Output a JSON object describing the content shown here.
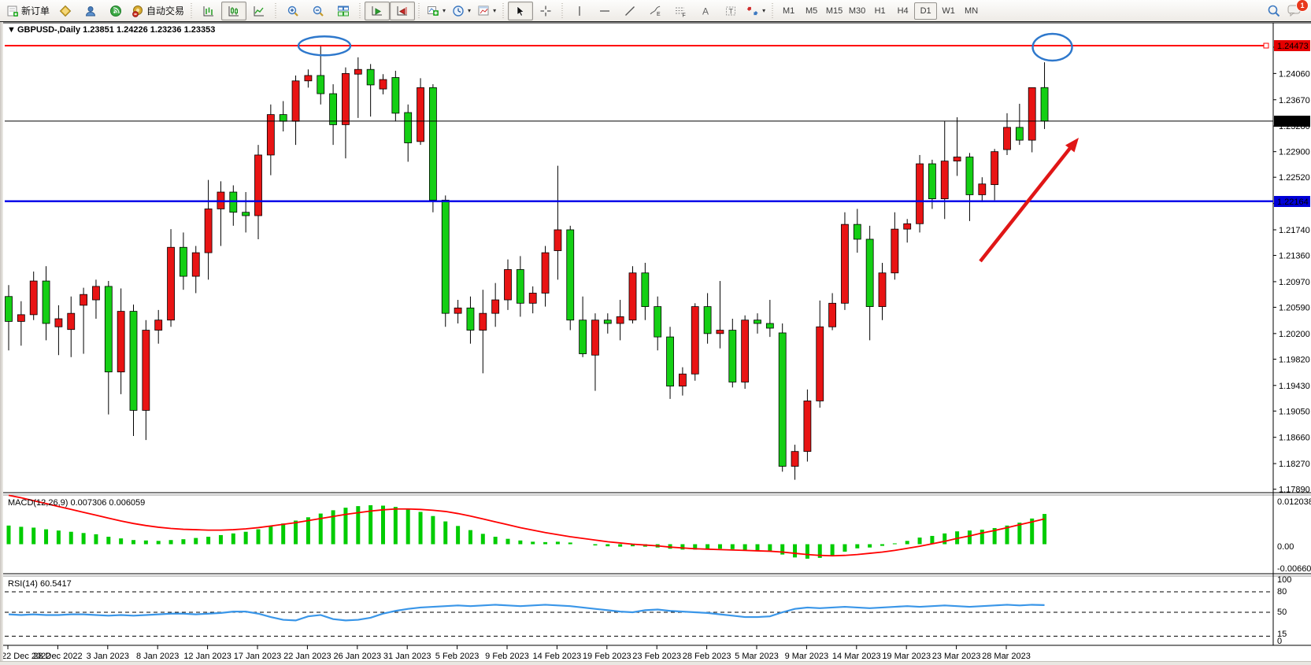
{
  "toolbar": {
    "new_order_label": "新订单",
    "autotrade_label": "自动交易",
    "timeframes": [
      "M1",
      "M5",
      "M15",
      "M30",
      "H1",
      "H4",
      "D1",
      "W1",
      "MN"
    ],
    "active_timeframe": "D1",
    "notification_count": "1",
    "icon_names": [
      "new-order-icon",
      "gold-diamond-icon",
      "profile-icon",
      "signal-icon",
      "autotrade-icon",
      "bar-chart-icon",
      "candlestick-chart-icon",
      "line-chart-icon",
      "zoom-in-icon",
      "zoom-out-icon",
      "tile-windows-icon",
      "auto-scroll-icon",
      "shift-chart-icon",
      "indicators-icon",
      "periods-icon",
      "templates-icon",
      "cursor-icon",
      "crosshair-icon",
      "vertical-line-icon",
      "horizontal-line-icon",
      "trendline-icon",
      "channel-icon",
      "fibonacci-icon",
      "text-icon",
      "label-icon",
      "shapes-icon",
      "search-icon",
      "chat-icon"
    ]
  },
  "chart": {
    "title_line": "GBPUSD-,Daily  1.23851 1.24226 1.23236 1.23353",
    "symbol": "GBPUSD-,Daily",
    "ohlc_display": [
      "1.23851",
      "1.24226",
      "1.23236",
      "1.23353"
    ]
  },
  "annotations": {
    "resistance_line": {
      "price_label": "1.24473",
      "color": "#ff0000"
    },
    "bid_line": {
      "price_label": "1.23353",
      "color": "#000000"
    },
    "support_line": {
      "price_label": "1.22164",
      "color": "#0000e8"
    },
    "ellipse_color": "#2e78cc",
    "arrow_color": "#e01616",
    "ellipses": [
      "january-top-circle",
      "march-top-circle"
    ],
    "arrow": "up-trend-arrow"
  },
  "chart_data": [
    {
      "type": "candlestick",
      "title": "GBPUSD-,Daily",
      "ylim": [
        1.177,
        1.2465
      ],
      "up_color": "#e81414",
      "down_color": "#14cf14",
      "price_ticks": [
        "1.24450",
        "1.24060",
        "1.23670",
        "1.23280",
        "1.22900",
        "1.22520",
        "1.22130",
        "1.21740",
        "1.21360",
        "1.20970",
        "1.20590",
        "1.20200",
        "1.19820",
        "1.19430",
        "1.19050",
        "1.18660",
        "1.18270",
        "1.17890"
      ],
      "date_labels": [
        "22 Dec 2022",
        "28 Dec 2022",
        "3 Jan 2023",
        "8 Jan 2023",
        "12 Jan 2023",
        "17 Jan 2023",
        "22 Jan 2023",
        "26 Jan 2023",
        "31 Jan 2023",
        "5 Feb 2023",
        "9 Feb 2023",
        "14 Feb 2023",
        "19 Feb 2023",
        "23 Feb 2023",
        "28 Feb 2023",
        "5 Mar 2023",
        "9 Mar 2023",
        "14 Mar 2023",
        "19 Mar 2023",
        "23 Mar 2023",
        "28 Mar 2023"
      ],
      "hlines": [
        {
          "price": 1.24473,
          "label": "1.24473",
          "color": "#ff0000",
          "width": 2
        },
        {
          "price": 1.23353,
          "label": "1.23353",
          "color": "#000000",
          "width": 1
        },
        {
          "price": 1.22164,
          "label": "1.22164",
          "color": "#0000e8",
          "width": 2
        }
      ],
      "candles": [
        [
          "22 Dec 2022",
          1.2075,
          1.2092,
          1.1995,
          1.2038
        ],
        [
          "23 Dec 2022",
          1.2038,
          1.2068,
          1.2002,
          1.2048
        ],
        [
          "26 Dec 2022",
          1.2048,
          1.2112,
          1.204,
          1.2098
        ],
        [
          "27 Dec 2022",
          1.2098,
          1.212,
          1.201,
          1.2035
        ],
        [
          "28 Dec 2022",
          1.203,
          1.2062,
          1.1988,
          1.2042
        ],
        [
          "29 Dec 2022",
          1.2026,
          1.2075,
          1.1985,
          1.205
        ],
        [
          "30 Dec 2022",
          1.2062,
          1.2088,
          1.199,
          1.2078
        ],
        [
          "2 Jan 2023",
          1.207,
          1.21,
          1.2042,
          1.209
        ],
        [
          "3 Jan 2023",
          1.209,
          1.2098,
          1.19,
          1.1963
        ],
        [
          "4 Jan 2023",
          1.1963,
          1.2087,
          1.193,
          1.2053
        ],
        [
          "5 Jan 2023",
          1.2053,
          1.2063,
          1.1868,
          1.1906
        ],
        [
          "6 Jan 2023",
          1.1906,
          1.204,
          1.1862,
          1.2025
        ],
        [
          "8 Jan 2023",
          1.2025,
          1.2055,
          1.2005,
          1.204
        ],
        [
          "9 Jan 2023",
          1.204,
          1.2175,
          1.203,
          1.2148
        ],
        [
          "10 Jan 2023",
          1.2148,
          1.217,
          1.2085,
          1.2105
        ],
        [
          "11 Jan 2023",
          1.2105,
          1.215,
          1.208,
          1.214
        ],
        [
          "12 Jan 2023",
          1.214,
          1.2248,
          1.21,
          1.2205
        ],
        [
          "13 Jan 2023",
          1.2205,
          1.2246,
          1.215,
          1.223
        ],
        [
          "15 Jan 2023",
          1.223,
          1.224,
          1.218,
          1.22
        ],
        [
          "16 Jan 2023",
          1.22,
          1.223,
          1.217,
          1.2195
        ],
        [
          "17 Jan 2023",
          1.2195,
          1.23,
          1.216,
          1.2285
        ],
        [
          "18 Jan 2023",
          1.2285,
          1.236,
          1.2255,
          1.2345
        ],
        [
          "19 Jan 2023",
          1.2345,
          1.2365,
          1.232,
          1.2335
        ],
        [
          "20 Jan 2023",
          1.2335,
          1.2403,
          1.23,
          1.2395
        ],
        [
          "22 Jan 2023",
          1.2395,
          1.2412,
          1.2385,
          1.2403
        ],
        [
          "23 Jan 2023",
          1.2403,
          1.2447,
          1.236,
          1.2376
        ],
        [
          "24 Jan 2023",
          1.2376,
          1.239,
          1.23,
          1.233
        ],
        [
          "25 Jan 2023",
          1.233,
          1.2415,
          1.228,
          1.2406
        ],
        [
          "26 Jan 2023",
          1.2405,
          1.243,
          1.234,
          1.2412
        ],
        [
          "27 Jan 2023",
          1.2412,
          1.242,
          1.2342,
          1.2389
        ],
        [
          "29 Jan 2023",
          1.2383,
          1.2405,
          1.2375,
          1.2397
        ],
        [
          "30 Jan 2023",
          1.24,
          1.241,
          1.2335,
          1.2347
        ],
        [
          "31 Jan 2023",
          1.2348,
          1.236,
          1.2275,
          1.2303
        ],
        [
          "1 Feb 2023",
          1.2305,
          1.2399,
          1.23,
          1.2385
        ],
        [
          "2 Feb 2023",
          1.2385,
          1.239,
          1.22,
          1.2218
        ],
        [
          "3 Feb 2023",
          1.2218,
          1.2225,
          1.203,
          1.205
        ],
        [
          "5 Feb 2023",
          1.205,
          1.207,
          1.2035,
          1.2058
        ],
        [
          "6 Feb 2023",
          1.2058,
          1.2075,
          1.2005,
          1.2025
        ],
        [
          "7 Feb 2023",
          1.2025,
          1.2085,
          1.1961,
          1.205
        ],
        [
          "8 Feb 2023",
          1.205,
          1.2095,
          1.203,
          1.207
        ],
        [
          "9 Feb 2023",
          1.207,
          1.213,
          1.2055,
          1.2115
        ],
        [
          "10 Feb 2023",
          1.2115,
          1.2135,
          1.2045,
          1.2065
        ],
        [
          "12 Feb 2023",
          1.2065,
          1.209,
          1.205,
          1.208
        ],
        [
          "13 Feb 2023",
          1.208,
          1.215,
          1.206,
          1.214
        ],
        [
          "14 Feb 2023",
          1.2143,
          1.2269,
          1.21,
          1.2174
        ],
        [
          "15 Feb 2023",
          1.2174,
          1.218,
          1.2025,
          1.204
        ],
        [
          "16 Feb 2023",
          1.204,
          1.2075,
          1.1985,
          1.199
        ],
        [
          "17 Feb 2023",
          1.1988,
          1.205,
          1.1935,
          1.204
        ],
        [
          "19 Feb 2023",
          1.204,
          1.205,
          1.202,
          1.2035
        ],
        [
          "20 Feb 2023",
          1.2035,
          1.207,
          1.201,
          1.2045
        ],
        [
          "21 Feb 2023",
          1.204,
          1.212,
          1.2035,
          1.211
        ],
        [
          "22 Feb 2023",
          1.211,
          1.2125,
          1.204,
          1.206
        ],
        [
          "23 Feb 2023",
          1.206,
          1.2075,
          1.1995,
          1.2015
        ],
        [
          "24 Feb 2023",
          1.2015,
          1.203,
          1.1923,
          1.1942
        ],
        [
          "26 Feb 2023",
          1.1942,
          1.197,
          1.1928,
          1.196
        ],
        [
          "27 Feb 2023",
          1.196,
          1.2065,
          1.195,
          1.206
        ],
        [
          "28 Feb 2023",
          1.206,
          1.208,
          1.2005,
          1.202
        ],
        [
          "1 Mar 2023",
          1.202,
          1.2098,
          1.1998,
          1.2025
        ],
        [
          "2 Mar 2023",
          1.2025,
          1.2042,
          1.194,
          1.1948
        ],
        [
          "3 Mar 2023",
          1.1948,
          1.2047,
          1.1938,
          1.204
        ],
        [
          "5 Mar 2023",
          1.204,
          1.205,
          1.202,
          1.2035
        ],
        [
          "6 Mar 2023",
          1.2035,
          1.207,
          1.2015,
          1.2028
        ],
        [
          "7 Mar 2023",
          1.2021,
          1.2035,
          1.1815,
          1.1823
        ],
        [
          "8 Mar 2023",
          1.1823,
          1.1855,
          1.1803,
          1.1845
        ],
        [
          "9 Mar 2023",
          1.1845,
          1.1937,
          1.183,
          1.192
        ],
        [
          "10 Mar 2023",
          1.192,
          1.2069,
          1.191,
          1.203
        ],
        [
          "12 Mar 2023",
          1.203,
          1.208,
          1.2025,
          1.2065
        ],
        [
          "13 Mar 2023",
          1.2065,
          1.22,
          1.2055,
          1.2182
        ],
        [
          "14 Mar 2023",
          1.2182,
          1.2205,
          1.214,
          1.216
        ],
        [
          "15 Mar 2023",
          1.216,
          1.218,
          1.201,
          1.206
        ],
        [
          "16 Mar 2023",
          1.206,
          1.2125,
          1.204,
          1.211
        ],
        [
          "17 Mar 2023",
          1.211,
          1.22,
          1.21,
          1.2175
        ],
        [
          "19 Mar 2023",
          1.2175,
          1.219,
          1.2155,
          1.2183
        ],
        [
          "20 Mar 2023",
          1.2183,
          1.2285,
          1.217,
          1.2272
        ],
        [
          "21 Mar 2023",
          1.2272,
          1.2278,
          1.2205,
          1.222
        ],
        [
          "22 Mar 2023",
          1.222,
          1.2335,
          1.219,
          1.2276
        ],
        [
          "23 Mar 2023",
          1.2276,
          1.2341,
          1.2254,
          1.2282
        ],
        [
          "24 Mar 2023",
          1.2282,
          1.2288,
          1.2187,
          1.2226
        ],
        [
          "26 Mar 2023",
          1.2226,
          1.2252,
          1.2215,
          1.2242
        ],
        [
          "27 Mar 2023",
          1.2241,
          1.2294,
          1.2218,
          1.229
        ],
        [
          "28 Mar 2023",
          1.2293,
          1.2347,
          1.2285,
          1.2326
        ],
        [
          "29 Mar 2023",
          1.2326,
          1.2361,
          1.23,
          1.2307
        ],
        [
          "30 Mar 2023",
          1.2307,
          1.2385,
          1.2289,
          1.2385
        ],
        [
          "31 Mar 2023",
          1.23851,
          1.24226,
          1.23236,
          1.23353
        ]
      ]
    },
    {
      "type": "bar",
      "name": "MACD",
      "label_line": "MACD(12,26,9) 0.007306 0.006059",
      "axis_labels": [
        "0.012038",
        "0.00",
        "-0.006603"
      ],
      "ylim": [
        -0.006603,
        0.012038
      ],
      "bar_color": "#00cc00",
      "signal_color": "#ff0000",
      "histogram_x1e4": [
        45,
        42,
        40,
        36,
        33,
        30,
        27,
        24,
        18,
        14,
        10,
        9,
        8,
        10,
        12,
        15,
        18,
        22,
        26,
        30,
        36,
        43,
        50,
        57,
        65,
        74,
        82,
        88,
        92,
        94,
        93,
        90,
        85,
        78,
        68,
        55,
        44,
        34,
        25,
        18,
        13,
        9,
        6,
        5,
        6,
        4,
        0,
        -3,
        -5,
        -6,
        -5,
        -6,
        -8,
        -11,
        -13,
        -13,
        -12,
        -11,
        -12,
        -14,
        -15,
        -16,
        -25,
        -32,
        -35,
        -33,
        -28,
        -18,
        -10,
        -8,
        -4,
        2,
        8,
        16,
        20,
        26,
        31,
        33,
        35,
        39,
        45,
        52,
        62,
        73
      ],
      "signal_x1e4": [
        118,
        112,
        105,
        98,
        91,
        84,
        77,
        70,
        63,
        56,
        50,
        45,
        41,
        38,
        36,
        35,
        34,
        34,
        35,
        37,
        40,
        44,
        48,
        52,
        57,
        62,
        67,
        72,
        76,
        80,
        83,
        85,
        85,
        84,
        82,
        79,
        74,
        68,
        61,
        54,
        47,
        40,
        34,
        28,
        23,
        18,
        14,
        10,
        6,
        3,
        0,
        -2,
        -4,
        -7,
        -9,
        -11,
        -12,
        -13,
        -14,
        -15,
        -16,
        -17,
        -19,
        -22,
        -25,
        -27,
        -28,
        -27,
        -25,
        -22,
        -19,
        -15,
        -10,
        -5,
        1,
        7,
        14,
        20,
        27,
        33,
        40,
        47,
        54,
        61
      ]
    },
    {
      "type": "line",
      "name": "RSI",
      "label_line": "RSI(14) 60.5417",
      "axis_labels": [
        "100",
        "80",
        "50",
        "15",
        "0"
      ],
      "dashed_levels": [
        80,
        50,
        15
      ],
      "ylim": [
        0,
        100
      ],
      "line_color": "#3a96e8",
      "values": [
        47,
        46,
        47,
        46,
        46,
        47,
        47,
        46,
        45,
        46,
        45,
        46,
        47,
        48,
        48,
        47,
        48,
        49,
        51,
        51,
        48,
        43,
        39,
        38,
        44,
        46,
        40,
        38,
        39,
        42,
        48,
        52,
        55,
        57,
        58,
        59,
        60,
        59,
        60,
        61,
        60,
        59,
        60,
        61,
        60,
        59,
        57,
        55,
        53,
        51,
        50,
        53,
        54,
        52,
        51,
        50,
        49,
        47,
        45,
        43,
        43,
        44,
        50,
        55,
        57,
        56,
        57,
        58,
        57,
        56,
        57,
        58,
        59,
        58,
        59,
        60,
        59,
        58,
        59,
        60,
        61,
        60,
        61,
        60.54
      ]
    }
  ]
}
